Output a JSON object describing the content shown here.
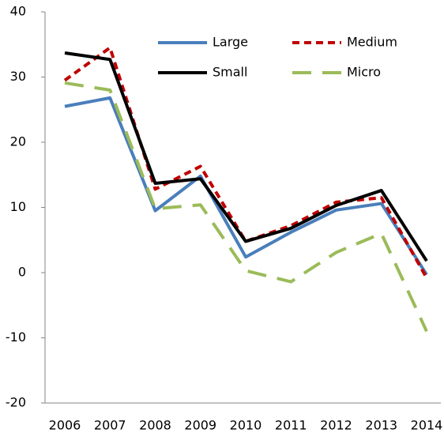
{
  "chart_data": {
    "type": "line",
    "categories": [
      "2006",
      "2007",
      "2008",
      "2009",
      "2010",
      "2011",
      "2012",
      "2013",
      "2014"
    ],
    "series": [
      {
        "name": "Large",
        "color": "#4a7ebb",
        "dash": "solid",
        "values": [
          25.5,
          26.8,
          9.5,
          14.8,
          2.4,
          6.2,
          9.6,
          10.6,
          -0.3
        ]
      },
      {
        "name": "Medium",
        "color": "#c00000",
        "dash": "short",
        "values": [
          29.5,
          34.5,
          12.8,
          16.3,
          4.8,
          7.2,
          10.8,
          11.5,
          -0.8
        ]
      },
      {
        "name": "Small",
        "color": "#000000",
        "dash": "solid",
        "values": [
          33.7,
          32.7,
          13.7,
          14.4,
          4.8,
          6.8,
          10.3,
          12.6,
          1.8
        ]
      },
      {
        "name": "Micro",
        "color": "#9bbb59",
        "dash": "long",
        "values": [
          29.1,
          28.0,
          9.8,
          10.4,
          0.3,
          -1.4,
          3.1,
          6.0,
          -9.0
        ]
      }
    ],
    "ylim": [
      -20,
      40
    ],
    "yticks": [
      -20,
      -10,
      0,
      10,
      20,
      30,
      40
    ],
    "grid": false,
    "legend": "top"
  }
}
